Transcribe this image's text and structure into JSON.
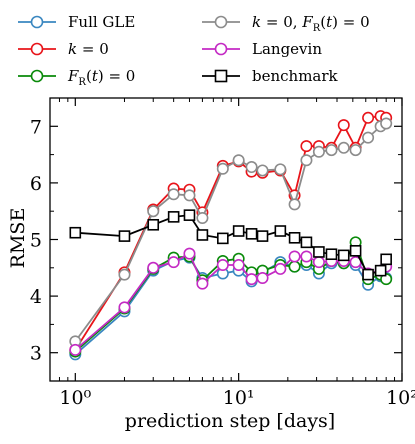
{
  "chart_data": {
    "type": "line",
    "xlabel": "prediction step [days]",
    "ylabel": "RMSE",
    "xscale": "log",
    "xlim": [
      0.7,
      100
    ],
    "ylim": [
      2.5,
      7.5
    ],
    "xticks": [
      {
        "value": 1,
        "label": "10⁰"
      },
      {
        "value": 10,
        "label": "10¹"
      },
      {
        "value": 100,
        "label": "10²"
      }
    ],
    "yticks": [
      3,
      4,
      5,
      6,
      7
    ],
    "legend_position": "top (above plot, two columns)",
    "x": [
      1,
      2,
      3,
      4,
      5,
      6,
      8,
      10,
      12,
      14,
      18,
      22,
      26,
      31,
      37,
      44,
      52,
      62,
      74,
      80
    ],
    "series": [
      {
        "name": "Full GLE",
        "color": "#3a87c0",
        "marker": "circle",
        "values": [
          2.97,
          3.73,
          4.45,
          4.62,
          4.68,
          4.32,
          4.4,
          4.45,
          4.26,
          4.42,
          4.6,
          4.52,
          4.55,
          4.4,
          4.58,
          4.58,
          4.55,
          4.2,
          4.35,
          4.32
        ]
      },
      {
        "name": "k = 0",
        "color": "#e8141a",
        "marker": "circle",
        "values": [
          3.05,
          4.42,
          5.53,
          5.9,
          5.88,
          5.48,
          6.3,
          6.38,
          6.2,
          6.18,
          6.22,
          5.78,
          6.65,
          6.65,
          6.62,
          7.02,
          6.62,
          7.15,
          7.18,
          7.15
        ]
      },
      {
        "name": "F_R(t) = 0",
        "color": "#0a8a0a",
        "marker": "circle",
        "values": [
          3.02,
          3.78,
          4.48,
          4.68,
          4.7,
          4.28,
          4.62,
          4.66,
          4.42,
          4.45,
          4.55,
          4.52,
          4.6,
          4.48,
          4.62,
          4.58,
          4.95,
          4.3,
          4.38,
          4.3
        ]
      },
      {
        "name": "k = 0, F_R(t) = 0",
        "color": "#8c8c8c",
        "marker": "circle",
        "values": [
          3.2,
          4.38,
          5.5,
          5.8,
          5.78,
          5.38,
          6.25,
          6.4,
          6.28,
          6.22,
          6.24,
          5.62,
          6.4,
          6.55,
          6.58,
          6.62,
          6.58,
          6.8,
          7.0,
          7.05
        ]
      },
      {
        "name": "Langevin",
        "color": "#c42ac4",
        "marker": "circle",
        "values": [
          3.05,
          3.8,
          4.5,
          4.6,
          4.75,
          4.22,
          4.55,
          4.55,
          4.3,
          4.32,
          4.48,
          4.7,
          4.7,
          4.6,
          4.62,
          4.62,
          4.6,
          4.4,
          4.45,
          4.52
        ]
      },
      {
        "name": "benchmark",
        "color": "#000000",
        "marker": "square",
        "values": [
          5.12,
          5.06,
          5.26,
          5.4,
          5.43,
          5.08,
          5.02,
          5.15,
          5.1,
          5.06,
          5.15,
          5.03,
          4.95,
          4.78,
          4.74,
          4.72,
          4.8,
          4.38,
          4.45,
          4.65
        ]
      }
    ],
    "legend": [
      {
        "series": 0,
        "label": "Full GLE"
      },
      {
        "series": 3,
        "label": "k = 0, F_R(t) = 0"
      },
      {
        "series": 1,
        "label": "k = 0"
      },
      {
        "series": 4,
        "label": "Langevin"
      },
      {
        "series": 2,
        "label": "F_R(t) = 0"
      },
      {
        "series": 5,
        "label": "benchmark"
      }
    ]
  }
}
